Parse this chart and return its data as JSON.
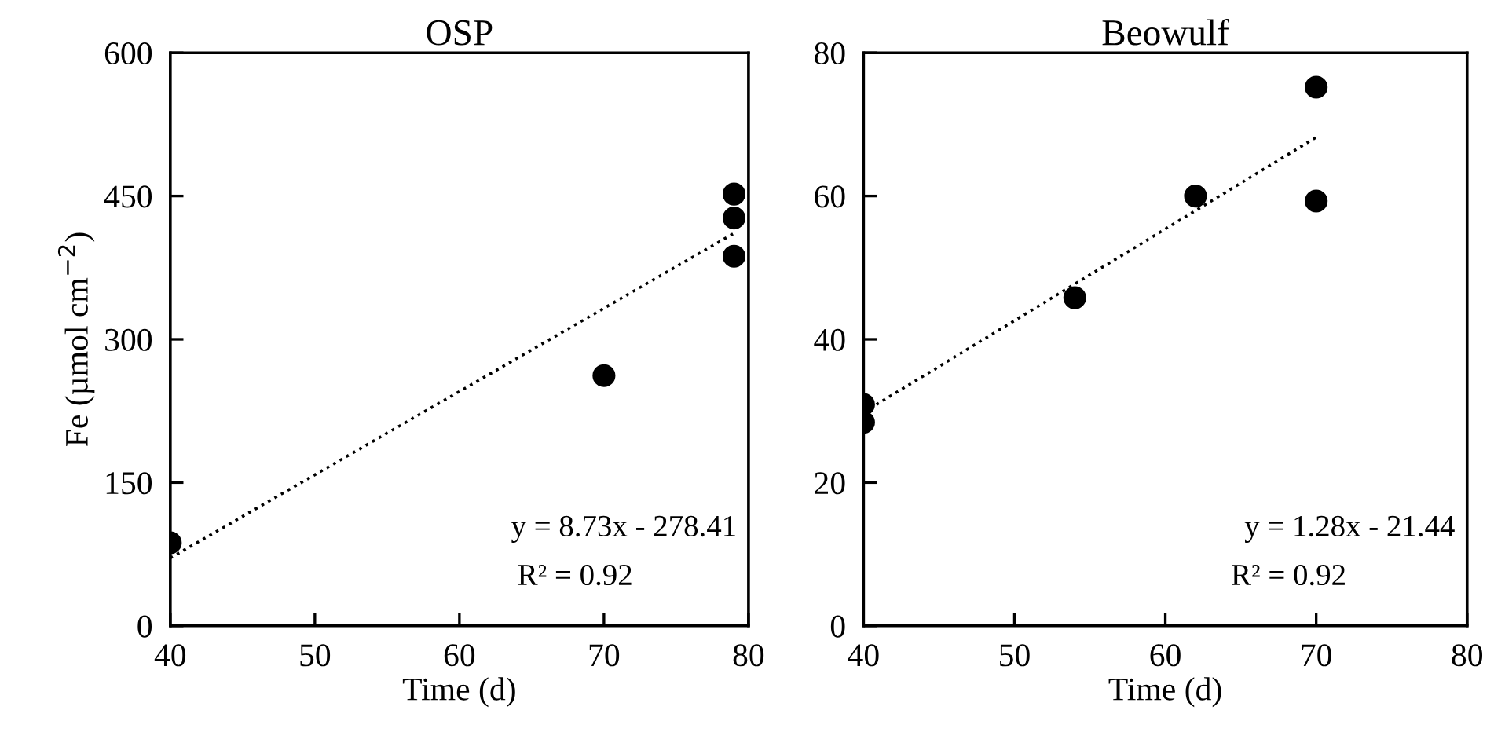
{
  "chart_data": [
    {
      "type": "scatter",
      "title": "OSP",
      "xlabel": "Time (d)",
      "ylabel": "Fe (µmol cm$^{−2}$)",
      "xlim": [
        40,
        80
      ],
      "xticks": [
        40,
        50,
        60,
        70,
        80
      ],
      "ylim": [
        0,
        600
      ],
      "yticks": [
        0,
        150,
        300,
        450,
        600
      ],
      "grid": false,
      "legend": false,
      "marker": "circle",
      "series": [
        {
          "color": "#000000",
          "x": [
            40,
            70,
            79,
            79,
            79
          ],
          "values": [
            87,
            262,
            452,
            427,
            387
          ]
        },
        {
          "type": "line",
          "color": "#000000",
          "line_style": "dotted",
          "marker": "none",
          "x": [
            40,
            79
          ],
          "values": [
            71,
            411
          ]
        }
      ],
      "annotations": [
        "y = 8.73x - 278.41",
        "R² = 0.92"
      ]
    },
    {
      "type": "scatter",
      "title": "Beowulf",
      "xlabel": "Time (d)",
      "xlim": [
        40,
        80
      ],
      "xticks": [
        40,
        50,
        60,
        70,
        80
      ],
      "ylim": [
        0,
        80
      ],
      "yticks": [
        0,
        20,
        40,
        60,
        80
      ],
      "grid": false,
      "legend": false,
      "marker": "circle",
      "series": [
        {
          "color": "#000000",
          "x": [
            40,
            40,
            54,
            62,
            70,
            70
          ],
          "values": [
            30.9,
            28.4,
            45.8,
            60,
            75.2,
            59.3
          ]
        },
        {
          "type": "line",
          "color": "#000000",
          "line_style": "dotted",
          "marker": "none",
          "x": [
            40,
            70
          ],
          "values": [
            29.8,
            68.2
          ]
        }
      ],
      "annotations": [
        "y = 1.28x - 21.44",
        "R² = 0.92"
      ]
    }
  ]
}
